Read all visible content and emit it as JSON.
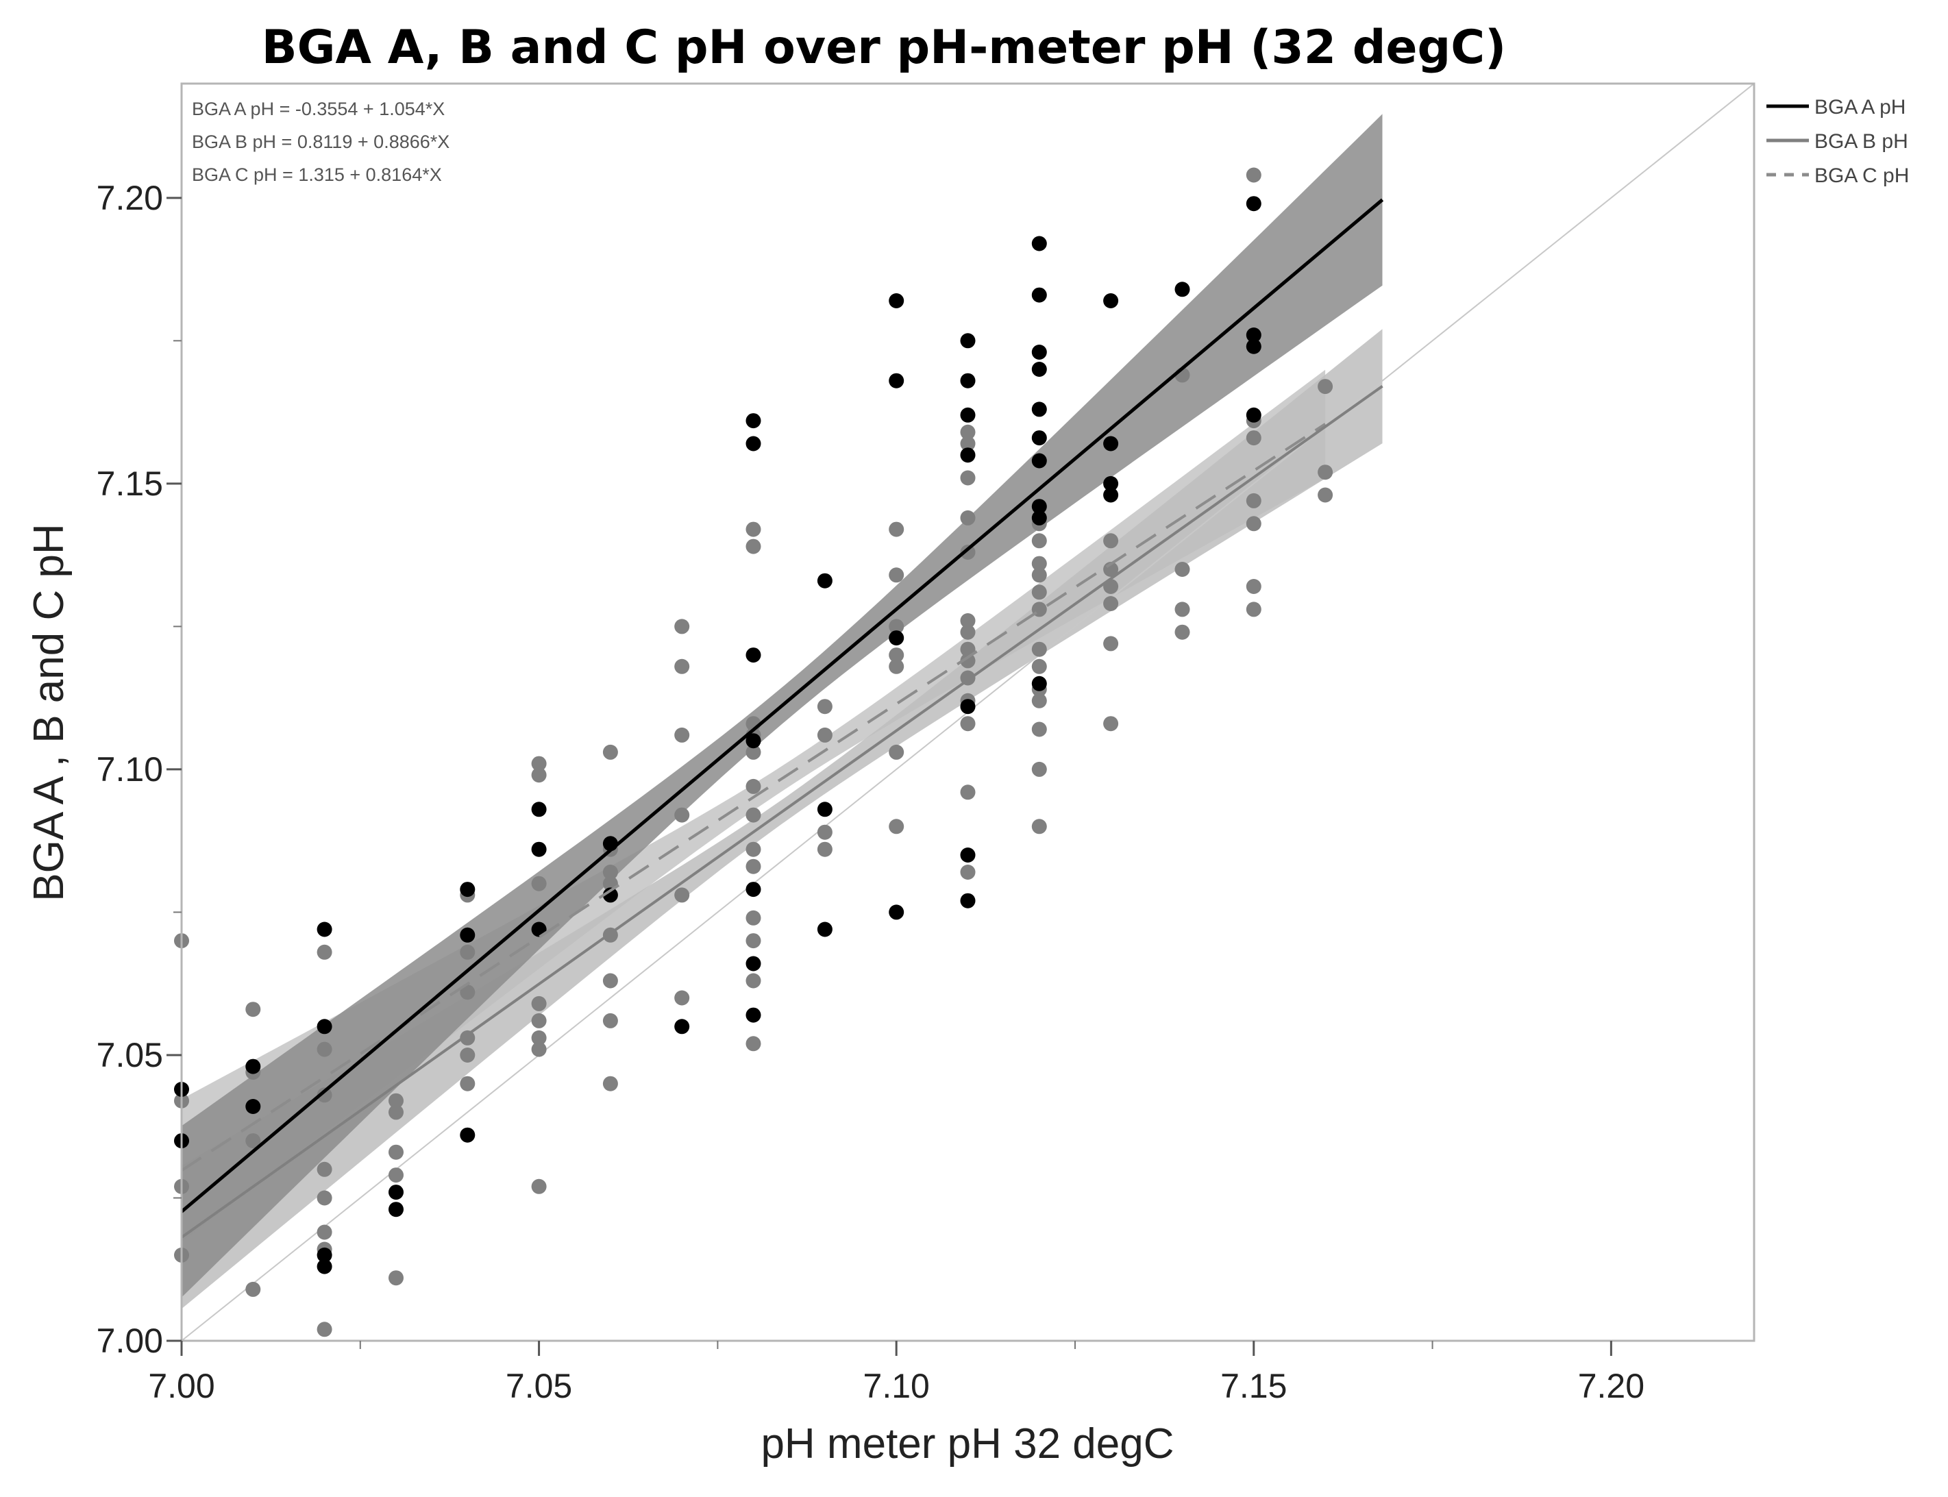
{
  "chart_data": {
    "type": "scatter",
    "title": "BGA A, B and C pH over pH-meter pH (32 degC)",
    "xlabel": "pH meter pH 32 degC",
    "ylabel": "BGA A , B and C pH",
    "xlim": [
      7.0,
      7.22
    ],
    "ylim": [
      7.0,
      7.22
    ],
    "x_ticks": [
      "7.00",
      "7.05",
      "7.10",
      "7.15",
      "7.20"
    ],
    "y_ticks": [
      "7.00",
      "7.05",
      "7.10",
      "7.15",
      "7.20"
    ],
    "grid": false,
    "identity_line": true,
    "legend_position": "right, outside plot",
    "equations": [
      "BGA A pH = -0.3554 + 1.054*X",
      "BGA B pH = 0.8119 + 0.8866*X",
      "BGA C pH = 1.315 + 0.8164*X"
    ],
    "series": [
      {
        "name": "BGA A pH",
        "color": "#000000",
        "line_style": "solid",
        "fit": {
          "intercept": -0.3554,
          "slope": 1.054,
          "x_range": [
            7.0,
            7.168
          ]
        },
        "band_color": "#8c8c8c",
        "points": [
          [
            7.0,
            7.044
          ],
          [
            7.0,
            7.035
          ],
          [
            7.01,
            7.048
          ],
          [
            7.01,
            7.041
          ],
          [
            7.02,
            7.072
          ],
          [
            7.02,
            7.055
          ],
          [
            7.02,
            7.013
          ],
          [
            7.02,
            7.015
          ],
          [
            7.03,
            7.026
          ],
          [
            7.03,
            7.023
          ],
          [
            7.04,
            7.079
          ],
          [
            7.04,
            7.071
          ],
          [
            7.04,
            7.036
          ],
          [
            7.05,
            7.093
          ],
          [
            7.05,
            7.086
          ],
          [
            7.05,
            7.072
          ],
          [
            7.06,
            7.087
          ],
          [
            7.06,
            7.078
          ],
          [
            7.07,
            7.055
          ],
          [
            7.08,
            7.161
          ],
          [
            7.08,
            7.157
          ],
          [
            7.08,
            7.12
          ],
          [
            7.08,
            7.105
          ],
          [
            7.08,
            7.079
          ],
          [
            7.08,
            7.066
          ],
          [
            7.08,
            7.057
          ],
          [
            7.09,
            7.133
          ],
          [
            7.09,
            7.093
          ],
          [
            7.09,
            7.072
          ],
          [
            7.1,
            7.182
          ],
          [
            7.1,
            7.168
          ],
          [
            7.1,
            7.123
          ],
          [
            7.1,
            7.075
          ],
          [
            7.11,
            7.175
          ],
          [
            7.11,
            7.168
          ],
          [
            7.11,
            7.162
          ],
          [
            7.11,
            7.155
          ],
          [
            7.11,
            7.111
          ],
          [
            7.11,
            7.085
          ],
          [
            7.11,
            7.077
          ],
          [
            7.12,
            7.192
          ],
          [
            7.12,
            7.183
          ],
          [
            7.12,
            7.173
          ],
          [
            7.12,
            7.17
          ],
          [
            7.12,
            7.163
          ],
          [
            7.12,
            7.158
          ],
          [
            7.12,
            7.154
          ],
          [
            7.12,
            7.146
          ],
          [
            7.12,
            7.144
          ],
          [
            7.12,
            7.115
          ],
          [
            7.13,
            7.182
          ],
          [
            7.13,
            7.157
          ],
          [
            7.13,
            7.15
          ],
          [
            7.13,
            7.148
          ],
          [
            7.14,
            7.184
          ],
          [
            7.15,
            7.199
          ],
          [
            7.15,
            7.176
          ],
          [
            7.15,
            7.174
          ],
          [
            7.15,
            7.162
          ]
        ]
      },
      {
        "name": "BGA B pH",
        "color": "#808080",
        "line_style": "solid",
        "fit": {
          "intercept": 0.8119,
          "slope": 0.8866,
          "x_range": [
            7.0,
            7.168
          ]
        },
        "band_color": "#bdbdbd",
        "points": [
          [
            7.0,
            7.07
          ],
          [
            7.0,
            7.042
          ],
          [
            7.0,
            7.027
          ],
          [
            7.0,
            7.015
          ],
          [
            7.01,
            7.058
          ],
          [
            7.01,
            7.047
          ],
          [
            7.01,
            7.035
          ],
          [
            7.01,
            7.009
          ],
          [
            7.02,
            7.068
          ],
          [
            7.02,
            7.051
          ],
          [
            7.02,
            7.043
          ],
          [
            7.02,
            7.03
          ],
          [
            7.02,
            7.025
          ],
          [
            7.02,
            7.019
          ],
          [
            7.02,
            7.016
          ],
          [
            7.02,
            7.002
          ],
          [
            7.03,
            7.042
          ],
          [
            7.03,
            7.04
          ],
          [
            7.03,
            7.033
          ],
          [
            7.03,
            7.029
          ],
          [
            7.03,
            7.011
          ],
          [
            7.04,
            7.078
          ],
          [
            7.04,
            7.068
          ],
          [
            7.04,
            7.061
          ],
          [
            7.04,
            7.053
          ],
          [
            7.04,
            7.05
          ],
          [
            7.04,
            7.045
          ],
          [
            7.05,
            7.101
          ],
          [
            7.05,
            7.099
          ],
          [
            7.05,
            7.08
          ],
          [
            7.05,
            7.059
          ],
          [
            7.05,
            7.056
          ],
          [
            7.05,
            7.053
          ],
          [
            7.05,
            7.051
          ],
          [
            7.05,
            7.027
          ],
          [
            7.06,
            7.103
          ],
          [
            7.06,
            7.086
          ],
          [
            7.06,
            7.082
          ],
          [
            7.06,
            7.08
          ],
          [
            7.06,
            7.071
          ],
          [
            7.06,
            7.063
          ],
          [
            7.06,
            7.056
          ],
          [
            7.06,
            7.045
          ],
          [
            7.07,
            7.125
          ],
          [
            7.07,
            7.118
          ],
          [
            7.07,
            7.106
          ],
          [
            7.07,
            7.092
          ],
          [
            7.07,
            7.078
          ],
          [
            7.07,
            7.06
          ],
          [
            7.08,
            7.142
          ],
          [
            7.08,
            7.139
          ],
          [
            7.08,
            7.108
          ],
          [
            7.08,
            7.106
          ],
          [
            7.08,
            7.103
          ],
          [
            7.08,
            7.097
          ],
          [
            7.08,
            7.092
          ],
          [
            7.08,
            7.086
          ],
          [
            7.08,
            7.083
          ],
          [
            7.08,
            7.074
          ],
          [
            7.08,
            7.07
          ],
          [
            7.08,
            7.063
          ],
          [
            7.08,
            7.052
          ],
          [
            7.09,
            7.111
          ],
          [
            7.09,
            7.106
          ],
          [
            7.09,
            7.089
          ],
          [
            7.09,
            7.086
          ],
          [
            7.1,
            7.142
          ],
          [
            7.1,
            7.134
          ],
          [
            7.1,
            7.125
          ],
          [
            7.1,
            7.12
          ],
          [
            7.1,
            7.118
          ],
          [
            7.1,
            7.103
          ],
          [
            7.1,
            7.09
          ],
          [
            7.11,
            7.159
          ],
          [
            7.11,
            7.157
          ],
          [
            7.11,
            7.151
          ],
          [
            7.11,
            7.144
          ],
          [
            7.11,
            7.138
          ],
          [
            7.11,
            7.126
          ],
          [
            7.11,
            7.124
          ],
          [
            7.11,
            7.121
          ],
          [
            7.11,
            7.119
          ],
          [
            7.11,
            7.116
          ],
          [
            7.11,
            7.112
          ],
          [
            7.11,
            7.108
          ],
          [
            7.11,
            7.096
          ],
          [
            7.11,
            7.082
          ],
          [
            7.12,
            7.143
          ],
          [
            7.12,
            7.14
          ],
          [
            7.12,
            7.136
          ],
          [
            7.12,
            7.134
          ],
          [
            7.12,
            7.131
          ],
          [
            7.12,
            7.128
          ],
          [
            7.12,
            7.121
          ],
          [
            7.12,
            7.118
          ],
          [
            7.12,
            7.114
          ],
          [
            7.12,
            7.112
          ],
          [
            7.12,
            7.107
          ],
          [
            7.12,
            7.1
          ],
          [
            7.12,
            7.09
          ],
          [
            7.13,
            7.14
          ],
          [
            7.13,
            7.135
          ],
          [
            7.13,
            7.132
          ],
          [
            7.13,
            7.129
          ],
          [
            7.13,
            7.122
          ],
          [
            7.13,
            7.108
          ],
          [
            7.14,
            7.169
          ],
          [
            7.14,
            7.135
          ],
          [
            7.14,
            7.128
          ],
          [
            7.14,
            7.124
          ],
          [
            7.15,
            7.204
          ],
          [
            7.15,
            7.161
          ],
          [
            7.15,
            7.158
          ],
          [
            7.15,
            7.147
          ],
          [
            7.15,
            7.143
          ],
          [
            7.15,
            7.132
          ],
          [
            7.15,
            7.128
          ],
          [
            7.16,
            7.167
          ],
          [
            7.16,
            7.152
          ],
          [
            7.16,
            7.148
          ]
        ]
      },
      {
        "name": "BGA C pH",
        "color": "#8c8c8c",
        "line_style": "dashed",
        "fit": {
          "intercept": 1.315,
          "slope": 0.8164,
          "x_range": [
            7.0,
            7.16
          ]
        },
        "band_color": "#c8c8c8",
        "points": []
      }
    ]
  }
}
